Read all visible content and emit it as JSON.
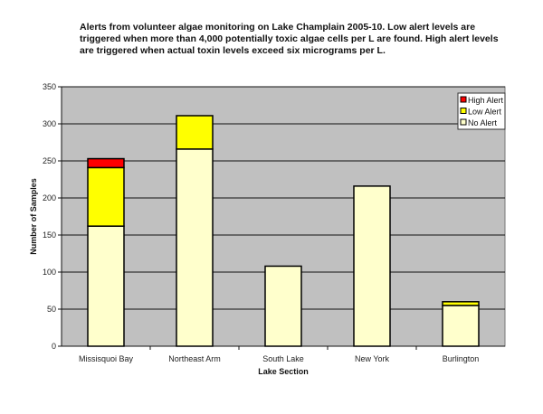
{
  "chart_data": {
    "type": "bar",
    "stacked": true,
    "title": "Alerts from volunteer algae monitoring on Lake Champlain 2005-10.  Low alert levels are triggered when more than 4,000 potentially toxic algae cells per L are found. High alert levels are triggered when actual toxin levels exceed six micrograms per L.",
    "xlabel": "Lake Section",
    "ylabel": "Number of Samples",
    "ylim": [
      0,
      350
    ],
    "yticks": [
      0,
      50,
      100,
      150,
      200,
      250,
      300,
      350
    ],
    "categories": [
      "Missisquoi Bay",
      "Northeast Arm",
      "South Lake",
      "New York",
      "Burlington"
    ],
    "series": [
      {
        "name": "No Alert",
        "color": "#FFFFCC",
        "values": [
          162,
          266,
          108,
          216,
          55
        ]
      },
      {
        "name": "Low Alert",
        "color": "#FFFF00",
        "values": [
          79,
          45,
          0,
          0,
          5
        ]
      },
      {
        "name": "High Alert",
        "color": "#FF0000",
        "values": [
          12,
          0,
          0,
          0,
          0
        ]
      }
    ],
    "legend_order": [
      "High Alert",
      "Low Alert",
      "No Alert"
    ],
    "legend_position": "top-right",
    "grid": true,
    "plot_background": "#C0C0C0"
  }
}
